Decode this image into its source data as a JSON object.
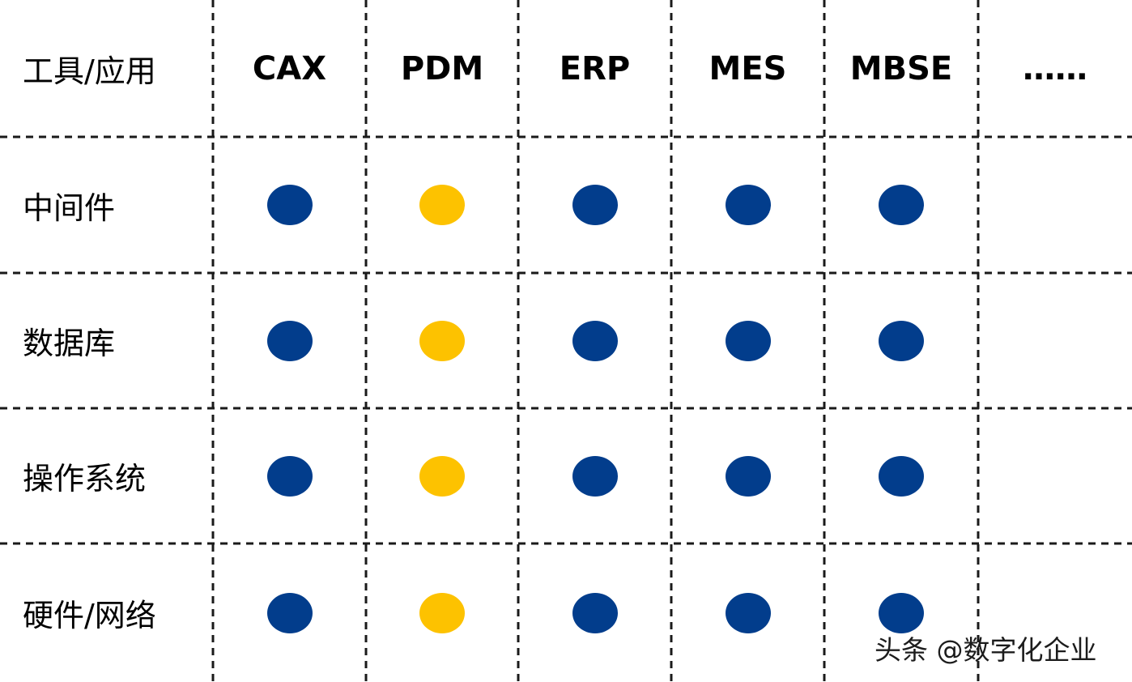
{
  "colors": {
    "blue": "#023d8c",
    "yellow": "#fdc200",
    "line": "#1a1a1a"
  },
  "table": {
    "corner": "工具/应用",
    "columns": [
      "CAX",
      "PDM",
      "ERP",
      "MES",
      "MBSE",
      "……"
    ],
    "rows": [
      {
        "label": "中间件",
        "marks": [
          "blue",
          "yellow",
          "blue",
          "blue",
          "blue",
          ""
        ]
      },
      {
        "label": "数据库",
        "marks": [
          "blue",
          "yellow",
          "blue",
          "blue",
          "blue",
          ""
        ]
      },
      {
        "label": "操作系统",
        "marks": [
          "blue",
          "yellow",
          "blue",
          "blue",
          "blue",
          ""
        ]
      },
      {
        "label": "硬件/网络",
        "marks": [
          "blue",
          "yellow",
          "blue",
          "blue",
          "blue",
          ""
        ]
      }
    ]
  },
  "watermark": "头条 @数字化企业"
}
